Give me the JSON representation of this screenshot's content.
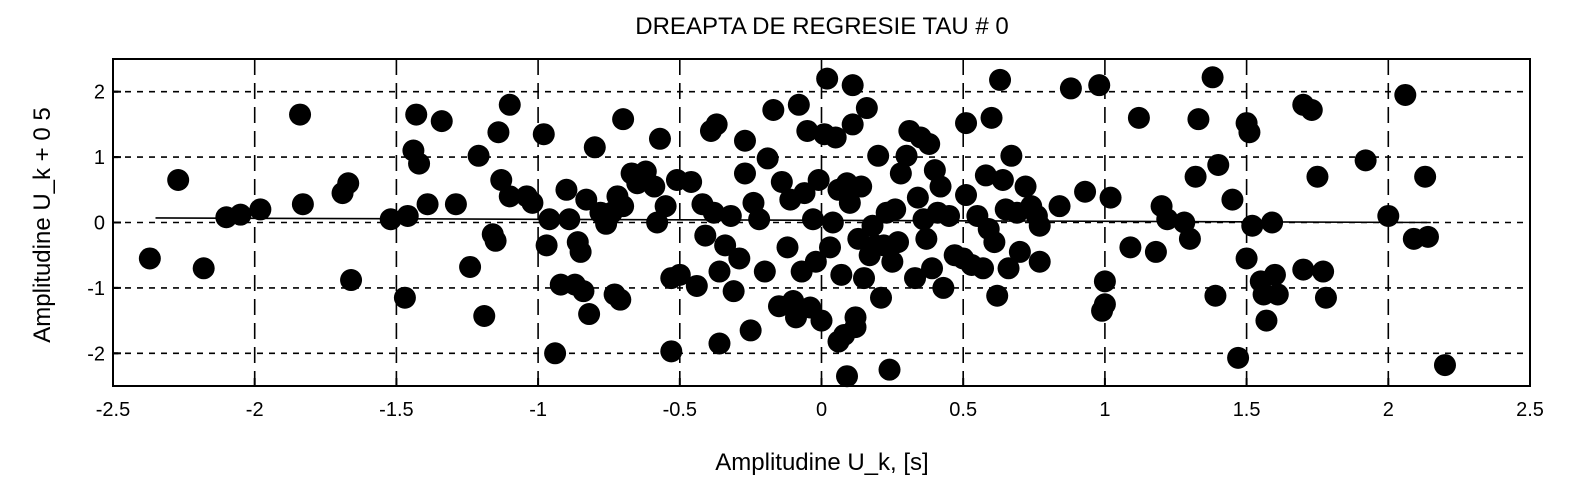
{
  "chart_data": {
    "type": "scatter",
    "title": "DREAPTA DE REGRESIE TAU # 0",
    "xlabel": "Amplitudine U_k, [s]",
    "ylabel": "Amplitudine U_k + 0 5",
    "xlim": [
      -2.5,
      2.5
    ],
    "ylim": [
      -2.5,
      2.5
    ],
    "xticks": [
      "-2.5",
      "-2",
      "-1.5",
      "-1",
      "-0.5",
      "0",
      "0.5",
      "1",
      "1.5",
      "2",
      "2.5"
    ],
    "yticks": [
      "-2",
      "-1",
      "0",
      "1",
      "2"
    ],
    "grid": true,
    "colors": {
      "points": "#000000",
      "grid": "#000000",
      "background": "#ffffff"
    },
    "regression_line": {
      "x": [
        -2.35,
        2.15
      ],
      "y": [
        0.07,
        0.0
      ]
    },
    "points": [
      {
        "x": -2.37,
        "y": -0.55
      },
      {
        "x": -2.27,
        "y": 0.65
      },
      {
        "x": -2.18,
        "y": -0.7
      },
      {
        "x": -2.1,
        "y": 0.08
      },
      {
        "x": -2.05,
        "y": 0.12
      },
      {
        "x": -1.98,
        "y": 0.2
      },
      {
        "x": -1.84,
        "y": 1.65
      },
      {
        "x": -1.83,
        "y": 0.28
      },
      {
        "x": -1.69,
        "y": 0.45
      },
      {
        "x": -1.67,
        "y": 0.6
      },
      {
        "x": -1.66,
        "y": -0.88
      },
      {
        "x": -1.52,
        "y": 0.05
      },
      {
        "x": -1.47,
        "y": -1.15
      },
      {
        "x": -1.46,
        "y": 0.1
      },
      {
        "x": -1.44,
        "y": 1.1
      },
      {
        "x": -1.43,
        "y": 1.65
      },
      {
        "x": -1.42,
        "y": 0.9
      },
      {
        "x": -1.39,
        "y": 0.28
      },
      {
        "x": -1.34,
        "y": 1.55
      },
      {
        "x": -1.29,
        "y": 0.28
      },
      {
        "x": -1.24,
        "y": -0.68
      },
      {
        "x": -1.21,
        "y": 1.02
      },
      {
        "x": -1.19,
        "y": -1.43
      },
      {
        "x": -1.16,
        "y": -0.18
      },
      {
        "x": -1.15,
        "y": -0.28
      },
      {
        "x": -1.14,
        "y": 1.38
      },
      {
        "x": -1.13,
        "y": 0.65
      },
      {
        "x": -1.1,
        "y": 1.8
      },
      {
        "x": -1.1,
        "y": 0.4
      },
      {
        "x": -1.04,
        "y": 0.4
      },
      {
        "x": -1.02,
        "y": 0.3
      },
      {
        "x": -0.98,
        "y": 1.35
      },
      {
        "x": -0.97,
        "y": -0.35
      },
      {
        "x": -0.96,
        "y": 0.05
      },
      {
        "x": -0.94,
        "y": -2.0
      },
      {
        "x": -0.92,
        "y": -0.95
      },
      {
        "x": -0.9,
        "y": 0.5
      },
      {
        "x": -0.89,
        "y": 0.05
      },
      {
        "x": -0.87,
        "y": -0.95
      },
      {
        "x": -0.86,
        "y": -0.3
      },
      {
        "x": -0.85,
        "y": -0.45
      },
      {
        "x": -0.84,
        "y": -1.05
      },
      {
        "x": -0.83,
        "y": 0.35
      },
      {
        "x": -0.82,
        "y": -1.4
      },
      {
        "x": -0.8,
        "y": 1.15
      },
      {
        "x": -0.78,
        "y": 0.15
      },
      {
        "x": -0.76,
        "y": -0.02
      },
      {
        "x": -0.74,
        "y": 0.15
      },
      {
        "x": -0.73,
        "y": -1.1
      },
      {
        "x": -0.72,
        "y": 0.4
      },
      {
        "x": -0.71,
        "y": -1.18
      },
      {
        "x": -0.7,
        "y": 0.25
      },
      {
        "x": -0.7,
        "y": 1.58
      },
      {
        "x": -0.67,
        "y": 0.75
      },
      {
        "x": -0.65,
        "y": 0.6
      },
      {
        "x": -0.62,
        "y": 0.78
      },
      {
        "x": -0.59,
        "y": 0.55
      },
      {
        "x": -0.58,
        "y": 0.0
      },
      {
        "x": -0.57,
        "y": 1.28
      },
      {
        "x": -0.55,
        "y": 0.25
      },
      {
        "x": -0.53,
        "y": -0.85
      },
      {
        "x": -0.53,
        "y": -1.97
      },
      {
        "x": -0.51,
        "y": 0.65
      },
      {
        "x": -0.5,
        "y": -0.8
      },
      {
        "x": -0.46,
        "y": 0.62
      },
      {
        "x": -0.44,
        "y": -0.97
      },
      {
        "x": -0.42,
        "y": 0.28
      },
      {
        "x": -0.41,
        "y": -0.2
      },
      {
        "x": -0.39,
        "y": 1.4
      },
      {
        "x": -0.38,
        "y": 0.15
      },
      {
        "x": -0.37,
        "y": 1.5
      },
      {
        "x": -0.36,
        "y": -0.75
      },
      {
        "x": -0.36,
        "y": -1.85
      },
      {
        "x": -0.34,
        "y": -0.35
      },
      {
        "x": -0.32,
        "y": 0.1
      },
      {
        "x": -0.31,
        "y": -1.05
      },
      {
        "x": -0.29,
        "y": -0.55
      },
      {
        "x": -0.27,
        "y": 0.75
      },
      {
        "x": -0.27,
        "y": 1.25
      },
      {
        "x": -0.25,
        "y": -1.65
      },
      {
        "x": -0.24,
        "y": 0.3
      },
      {
        "x": -0.22,
        "y": 0.05
      },
      {
        "x": -0.2,
        "y": -0.75
      },
      {
        "x": -0.19,
        "y": 0.98
      },
      {
        "x": -0.17,
        "y": 1.72
      },
      {
        "x": -0.15,
        "y": -1.28
      },
      {
        "x": -0.14,
        "y": 0.62
      },
      {
        "x": -0.12,
        "y": -0.38
      },
      {
        "x": -0.11,
        "y": 0.35
      },
      {
        "x": -0.1,
        "y": -1.2
      },
      {
        "x": -0.09,
        "y": -1.45
      },
      {
        "x": -0.08,
        "y": 1.8
      },
      {
        "x": -0.07,
        "y": -0.75
      },
      {
        "x": -0.06,
        "y": 0.45
      },
      {
        "x": -0.05,
        "y": 1.4
      },
      {
        "x": -0.04,
        "y": -1.3
      },
      {
        "x": -0.03,
        "y": 0.05
      },
      {
        "x": -0.02,
        "y": -0.6
      },
      {
        "x": -0.01,
        "y": 0.65
      },
      {
        "x": 0.0,
        "y": -1.5
      },
      {
        "x": 0.01,
        "y": 1.35
      },
      {
        "x": 0.02,
        "y": 2.2
      },
      {
        "x": 0.03,
        "y": -0.38
      },
      {
        "x": 0.04,
        "y": 0.0
      },
      {
        "x": 0.05,
        "y": 1.3
      },
      {
        "x": 0.06,
        "y": -1.82
      },
      {
        "x": 0.06,
        "y": 0.5
      },
      {
        "x": 0.07,
        "y": -0.8
      },
      {
        "x": 0.08,
        "y": -1.72
      },
      {
        "x": 0.09,
        "y": 0.6
      },
      {
        "x": 0.09,
        "y": -2.35
      },
      {
        "x": 0.1,
        "y": 0.3
      },
      {
        "x": 0.11,
        "y": 1.5
      },
      {
        "x": 0.11,
        "y": 2.1
      },
      {
        "x": 0.12,
        "y": -1.6
      },
      {
        "x": 0.12,
        "y": -1.45
      },
      {
        "x": 0.13,
        "y": -0.25
      },
      {
        "x": 0.14,
        "y": 0.55
      },
      {
        "x": 0.15,
        "y": -0.85
      },
      {
        "x": 0.16,
        "y": 1.75
      },
      {
        "x": 0.17,
        "y": -0.5
      },
      {
        "x": 0.18,
        "y": -0.05
      },
      {
        "x": 0.19,
        "y": -0.35
      },
      {
        "x": 0.2,
        "y": 1.02
      },
      {
        "x": 0.21,
        "y": -1.15
      },
      {
        "x": 0.22,
        "y": -0.35
      },
      {
        "x": 0.23,
        "y": 0.15
      },
      {
        "x": 0.24,
        "y": -2.25
      },
      {
        "x": 0.25,
        "y": -0.6
      },
      {
        "x": 0.26,
        "y": 0.2
      },
      {
        "x": 0.27,
        "y": -0.3
      },
      {
        "x": 0.28,
        "y": 0.75
      },
      {
        "x": 0.3,
        "y": 1.02
      },
      {
        "x": 0.31,
        "y": 1.4
      },
      {
        "x": 0.33,
        "y": -0.85
      },
      {
        "x": 0.34,
        "y": 0.38
      },
      {
        "x": 0.35,
        "y": 1.3
      },
      {
        "x": 0.36,
        "y": 0.05
      },
      {
        "x": 0.37,
        "y": -0.25
      },
      {
        "x": 0.38,
        "y": 1.2
      },
      {
        "x": 0.39,
        "y": -0.7
      },
      {
        "x": 0.4,
        "y": 0.8
      },
      {
        "x": 0.41,
        "y": 0.15
      },
      {
        "x": 0.42,
        "y": 0.55
      },
      {
        "x": 0.43,
        "y": -1.0
      },
      {
        "x": 0.45,
        "y": 0.1
      },
      {
        "x": 0.47,
        "y": -0.5
      },
      {
        "x": 0.5,
        "y": -0.55
      },
      {
        "x": 0.51,
        "y": 0.42
      },
      {
        "x": 0.51,
        "y": 1.52
      },
      {
        "x": 0.53,
        "y": -0.65
      },
      {
        "x": 0.55,
        "y": 0.1
      },
      {
        "x": 0.57,
        "y": -0.7
      },
      {
        "x": 0.58,
        "y": 0.72
      },
      {
        "x": 0.59,
        "y": -0.1
      },
      {
        "x": 0.6,
        "y": 1.6
      },
      {
        "x": 0.61,
        "y": -0.3
      },
      {
        "x": 0.62,
        "y": -1.12
      },
      {
        "x": 0.63,
        "y": 2.18
      },
      {
        "x": 0.64,
        "y": 0.65
      },
      {
        "x": 0.65,
        "y": 0.2
      },
      {
        "x": 0.66,
        "y": -0.7
      },
      {
        "x": 0.67,
        "y": 1.02
      },
      {
        "x": 0.69,
        "y": 0.15
      },
      {
        "x": 0.7,
        "y": -0.45
      },
      {
        "x": 0.72,
        "y": 0.55
      },
      {
        "x": 0.74,
        "y": 0.25
      },
      {
        "x": 0.76,
        "y": 0.1
      },
      {
        "x": 0.77,
        "y": -0.6
      },
      {
        "x": 0.77,
        "y": -0.05
      },
      {
        "x": 0.84,
        "y": 0.25
      },
      {
        "x": 0.88,
        "y": 2.05
      },
      {
        "x": 0.93,
        "y": 0.47
      },
      {
        "x": 0.98,
        "y": 2.1
      },
      {
        "x": 0.99,
        "y": -1.35
      },
      {
        "x": 1.0,
        "y": -0.9
      },
      {
        "x": 1.0,
        "y": -1.25
      },
      {
        "x": 1.02,
        "y": 0.38
      },
      {
        "x": 1.09,
        "y": -0.38
      },
      {
        "x": 1.12,
        "y": 1.6
      },
      {
        "x": 1.18,
        "y": -0.45
      },
      {
        "x": 1.2,
        "y": 0.25
      },
      {
        "x": 1.22,
        "y": 0.05
      },
      {
        "x": 1.28,
        "y": 0.0
      },
      {
        "x": 1.3,
        "y": -0.25
      },
      {
        "x": 1.32,
        "y": 0.7
      },
      {
        "x": 1.33,
        "y": 1.58
      },
      {
        "x": 1.38,
        "y": 2.22
      },
      {
        "x": 1.39,
        "y": -1.12
      },
      {
        "x": 1.4,
        "y": 0.88
      },
      {
        "x": 1.45,
        "y": 0.35
      },
      {
        "x": 1.47,
        "y": -2.07
      },
      {
        "x": 1.5,
        "y": 1.52
      },
      {
        "x": 1.5,
        "y": -0.55
      },
      {
        "x": 1.51,
        "y": 1.38
      },
      {
        "x": 1.52,
        "y": -0.05
      },
      {
        "x": 1.55,
        "y": -0.9
      },
      {
        "x": 1.56,
        "y": -1.1
      },
      {
        "x": 1.57,
        "y": -1.5
      },
      {
        "x": 1.59,
        "y": 0.0
      },
      {
        "x": 1.6,
        "y": -0.8
      },
      {
        "x": 1.61,
        "y": -1.1
      },
      {
        "x": 1.7,
        "y": -0.72
      },
      {
        "x": 1.7,
        "y": 1.8
      },
      {
        "x": 1.73,
        "y": 1.72
      },
      {
        "x": 1.75,
        "y": 0.7
      },
      {
        "x": 1.77,
        "y": -0.75
      },
      {
        "x": 1.78,
        "y": -1.15
      },
      {
        "x": 1.92,
        "y": 0.95
      },
      {
        "x": 2.0,
        "y": 0.1
      },
      {
        "x": 2.06,
        "y": 1.95
      },
      {
        "x": 2.09,
        "y": -0.25
      },
      {
        "x": 2.13,
        "y": 0.7
      },
      {
        "x": 2.14,
        "y": -0.22
      },
      {
        "x": 2.2,
        "y": -2.18
      }
    ]
  }
}
